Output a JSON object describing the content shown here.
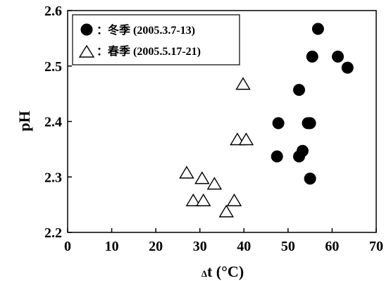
{
  "chart_data": {
    "type": "scatter",
    "ylabel": "pH",
    "xlabel_prefix": "Δ",
    "xlabel_main": "t (°C)",
    "xlim": [
      0,
      70
    ],
    "ylim": [
      2.2,
      2.6
    ],
    "xticks": [
      0,
      10,
      20,
      30,
      40,
      50,
      60,
      70
    ],
    "yticks": [
      2.2,
      2.3,
      2.4,
      2.5,
      2.6
    ],
    "x_tick_labels": [
      "0",
      "10",
      "20",
      "30",
      "40",
      "50",
      "60",
      "70"
    ],
    "y_tick_labels": [
      "2.2",
      "2.3",
      "2.4",
      "2.5",
      "2.6"
    ],
    "legend_position": "top-left",
    "series": [
      {
        "name": "：冬季 (2005.3.7-13)",
        "marker": "filled-circle",
        "color": "#000000",
        "points": [
          [
            47.5,
            2.337
          ],
          [
            47.8,
            2.397
          ],
          [
            52.5,
            2.457
          ],
          [
            52.5,
            2.337
          ],
          [
            53.3,
            2.347
          ],
          [
            54.5,
            2.397
          ],
          [
            55.0,
            2.397
          ],
          [
            55.0,
            2.297
          ],
          [
            55.5,
            2.517
          ],
          [
            56.8,
            2.567
          ],
          [
            61.3,
            2.517
          ],
          [
            63.5,
            2.497
          ]
        ]
      },
      {
        "name": "：春季 (2005.5.17-21)",
        "marker": "open-triangle",
        "color": "#000000",
        "points": [
          [
            27.0,
            2.307
          ],
          [
            28.5,
            2.257
          ],
          [
            30.5,
            2.297
          ],
          [
            30.8,
            2.257
          ],
          [
            33.3,
            2.287
          ],
          [
            36.0,
            2.237
          ],
          [
            37.8,
            2.257
          ],
          [
            38.5,
            2.367
          ],
          [
            40.5,
            2.367
          ],
          [
            39.8,
            2.467
          ]
        ]
      }
    ]
  }
}
